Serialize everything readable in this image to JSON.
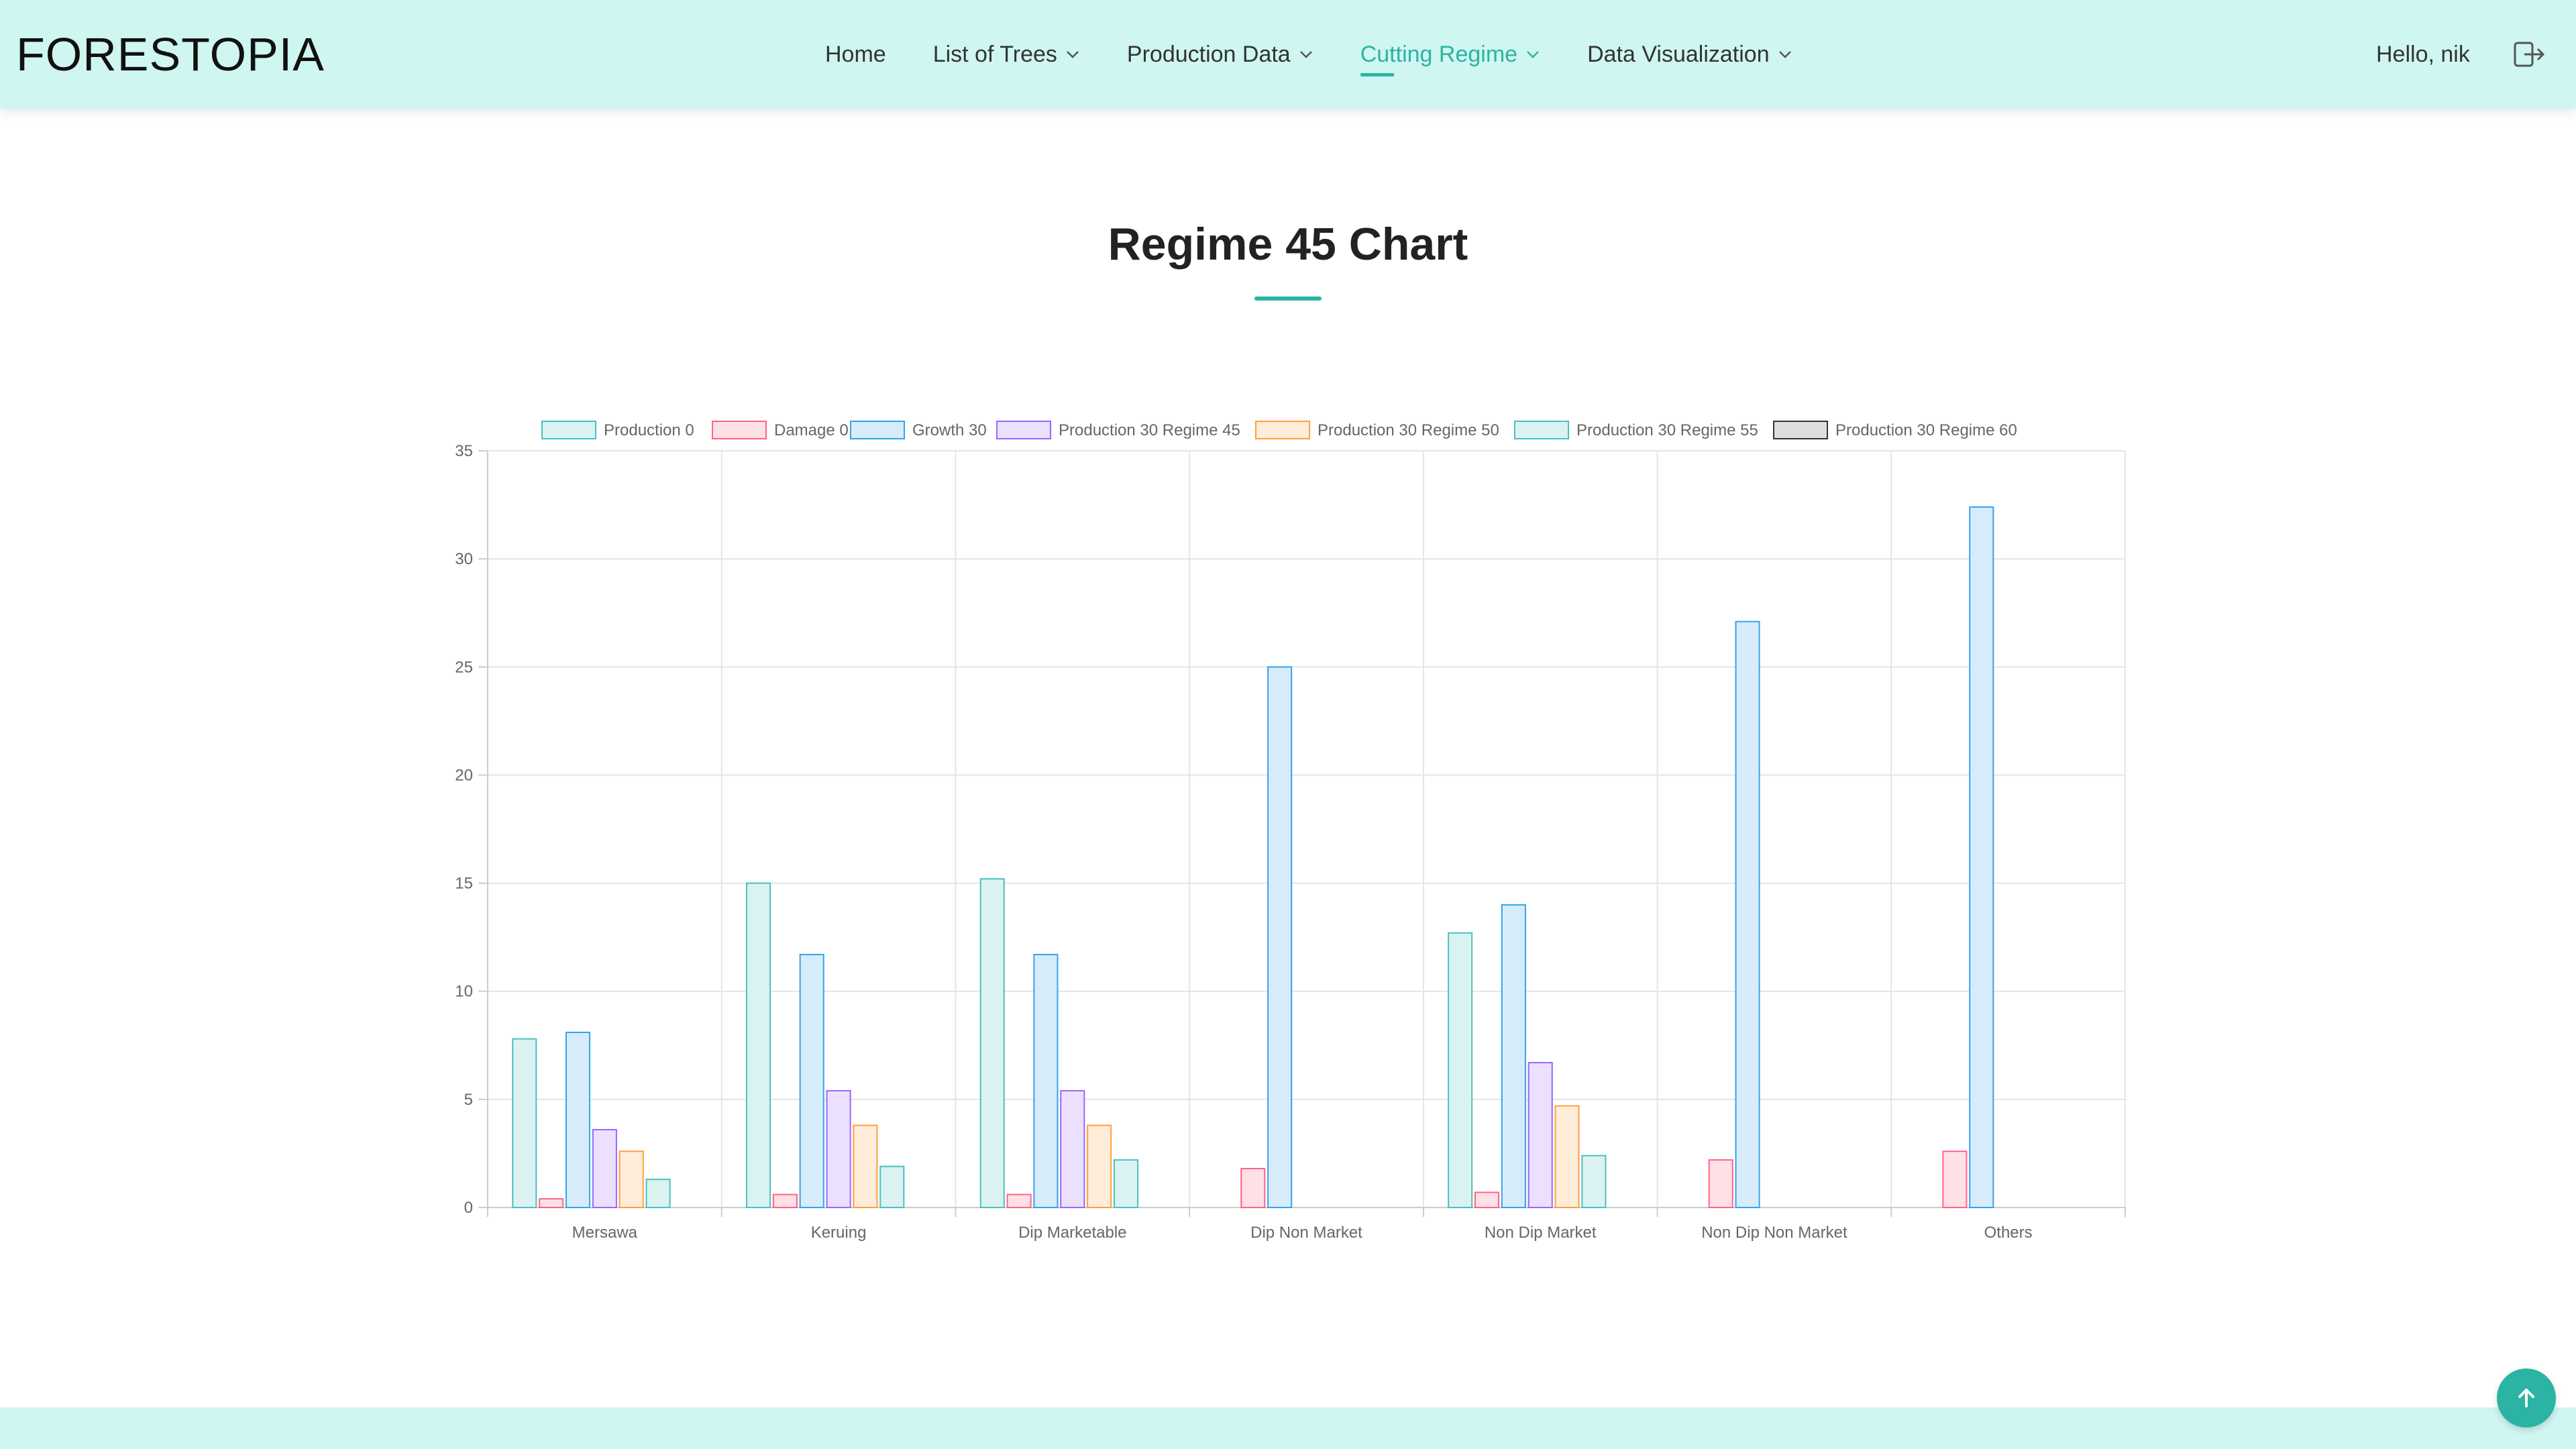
{
  "brand": "FORESTOPIA",
  "nav": [
    {
      "label": "Home",
      "dropdown": false,
      "active": false
    },
    {
      "label": "List of Trees",
      "dropdown": true,
      "active": false
    },
    {
      "label": "Production Data",
      "dropdown": true,
      "active": false
    },
    {
      "label": "Cutting Regime",
      "dropdown": true,
      "active": true
    },
    {
      "label": "Data Visualization",
      "dropdown": true,
      "active": false
    }
  ],
  "user": {
    "greeting": "Hello, nik"
  },
  "page": {
    "title": "Regime 45 Chart"
  },
  "colors": {
    "accent": "#2bb3a3",
    "nav_bg": "#cff6f1"
  },
  "icons": {
    "logout": "logout-icon",
    "scroll_top": "arrow-up-icon",
    "dropdown": "chevron-down-icon"
  },
  "chart_data": {
    "type": "bar",
    "categories": [
      "Mersawa",
      "Keruing",
      "Dip Marketable",
      "Dip Non Market",
      "Non Dip Market",
      "Non Dip Non Market",
      "Others"
    ],
    "ylim": [
      0,
      35
    ],
    "yticks": [
      0,
      5,
      10,
      15,
      20,
      25,
      30,
      35
    ],
    "grid": true,
    "legend_position": "top",
    "series": [
      {
        "name": "Production 0",
        "color": "#4bc0c0",
        "fill": "#dbf2f2",
        "values": [
          7.8,
          15.0,
          15.2,
          0,
          12.7,
          0,
          0
        ]
      },
      {
        "name": "Damage 0",
        "color": "#ff6384",
        "fill": "#ffe0e6",
        "values": [
          0.4,
          0.6,
          0.6,
          1.8,
          0.7,
          2.2,
          2.6
        ]
      },
      {
        "name": "Growth 30",
        "color": "#36a2eb",
        "fill": "#d7ecfb",
        "values": [
          8.1,
          11.7,
          11.7,
          25.0,
          14.0,
          27.1,
          32.4
        ]
      },
      {
        "name": "Production 30 Regime 45",
        "color": "#9966ff",
        "fill": "#ebe0ff",
        "values": [
          3.6,
          5.4,
          5.4,
          0,
          6.7,
          0,
          0
        ]
      },
      {
        "name": "Production 30 Regime 50",
        "color": "#ff9f40",
        "fill": "#ffecd9",
        "values": [
          2.6,
          3.8,
          3.8,
          0,
          4.7,
          0,
          0
        ]
      },
      {
        "name": "Production 30 Regime 55",
        "color": "#4bc0c0",
        "fill": "#dbf2f2",
        "values": [
          1.3,
          1.9,
          2.2,
          0,
          2.4,
          0,
          0
        ]
      },
      {
        "name": "Production 30 Regime 60",
        "color": "#333333",
        "fill": "#dddddd",
        "values": [
          0,
          0,
          0,
          0,
          0,
          0,
          0
        ]
      }
    ]
  }
}
